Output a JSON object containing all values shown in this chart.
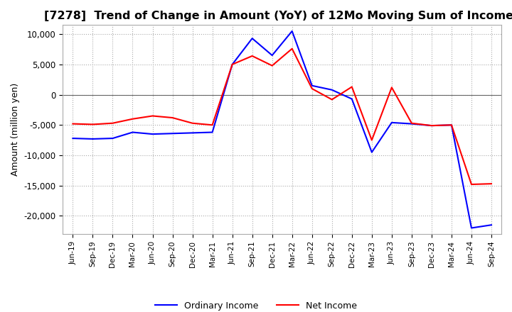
{
  "title": "[7278]  Trend of Change in Amount (YoY) of 12Mo Moving Sum of Incomes",
  "ylabel": "Amount (million yen)",
  "ylim": [
    -23000,
    11500
  ],
  "yticks": [
    10000,
    5000,
    0,
    -5000,
    -10000,
    -15000,
    -20000
  ],
  "x_labels": [
    "Jun-19",
    "Sep-19",
    "Dec-19",
    "Mar-20",
    "Jun-20",
    "Sep-20",
    "Dec-20",
    "Mar-21",
    "Jun-21",
    "Sep-21",
    "Dec-21",
    "Mar-22",
    "Jun-22",
    "Sep-22",
    "Dec-22",
    "Mar-23",
    "Jun-23",
    "Sep-23",
    "Dec-23",
    "Mar-24",
    "Jun-24",
    "Sep-24"
  ],
  "ordinary_income": [
    -7200,
    -7300,
    -7200,
    -6200,
    -6500,
    -6400,
    -6300,
    -6200,
    5000,
    9300,
    6500,
    10500,
    1500,
    800,
    -700,
    -9500,
    -4600,
    -4800,
    -5100,
    -5000,
    -22000,
    -21500
  ],
  "net_income": [
    -4800,
    -4900,
    -4700,
    -4000,
    -3500,
    -3800,
    -4700,
    -5000,
    5000,
    6400,
    4800,
    7600,
    1000,
    -800,
    1300,
    -7500,
    1200,
    -4700,
    -5100,
    -5000,
    -14800,
    -14700
  ],
  "ordinary_color": "#0000ff",
  "net_color": "#ff0000",
  "line_width": 1.5,
  "title_fontsize": 11.5,
  "background_color": "#ffffff",
  "grid_color": "#aaaaaa",
  "grid_style": "dotted"
}
